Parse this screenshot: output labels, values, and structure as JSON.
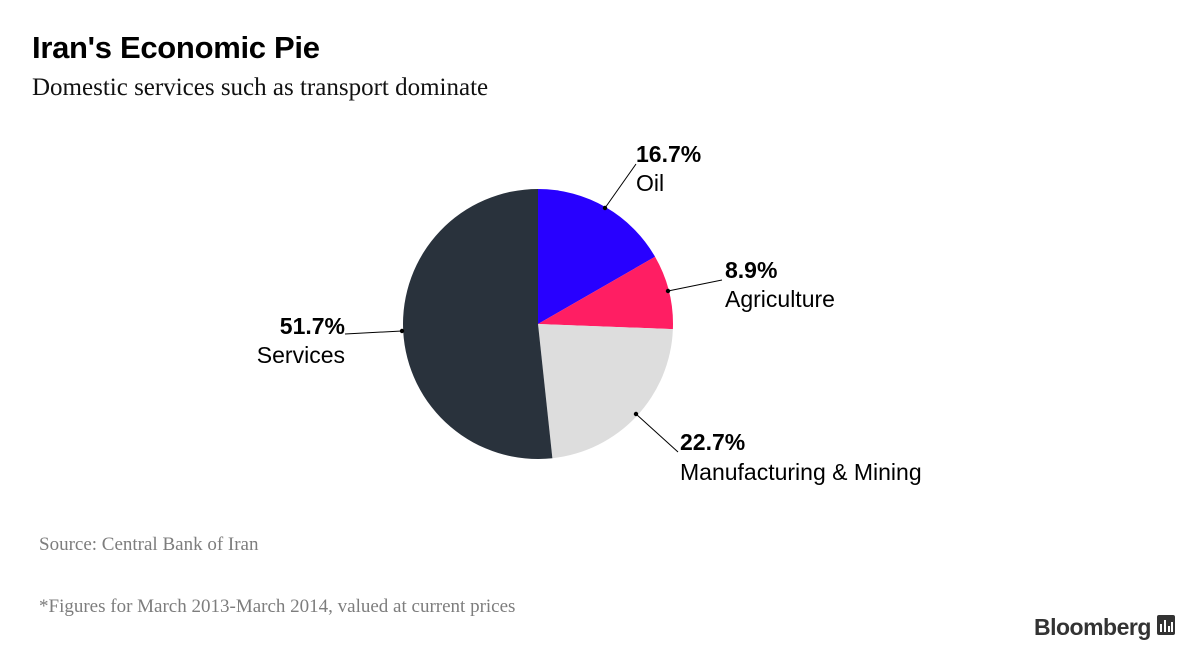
{
  "header": {
    "title": "Iran's Economic Pie",
    "subtitle": "Domestic services such as transport dominate"
  },
  "footer": {
    "source": "Source: Central Bank of Iran",
    "note": "*Figures for March 2013-March 2014, valued at current prices",
    "brand": "Bloomberg",
    "brand_icon": "bloomberg-chart-icon"
  },
  "chart_data": {
    "type": "pie",
    "title": "Iran's Economic Pie",
    "subtitle": "Domestic services such as transport dominate",
    "slices": [
      {
        "label": "Oil",
        "value": 16.7,
        "value_label": "16.7%",
        "color": "#2800ff"
      },
      {
        "label": "Agriculture",
        "value": 8.9,
        "value_label": "8.9%",
        "color": "#ff1e63"
      },
      {
        "label": "Manufacturing & Mining",
        "value": 22.7,
        "value_label": "22.7%",
        "color": "#dddddd"
      },
      {
        "label": "Services",
        "value": 51.7,
        "value_label": "51.7%",
        "color": "#29323c"
      }
    ]
  }
}
